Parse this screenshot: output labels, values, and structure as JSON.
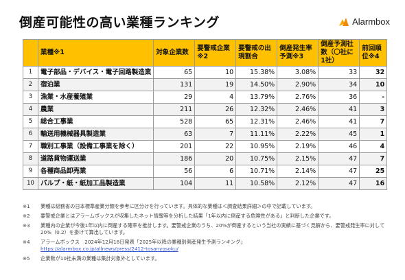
{
  "title": "倒産可能性の高い業種ランキング",
  "brand": {
    "name": "Alarmbox"
  },
  "headers": [
    "",
    "業種※1",
    "対象企業数",
    "要警戒企業※2",
    "要警戒の出現割合",
    "倒産発生率予測※3",
    "倒産予測社数（〇社に1社）",
    "前回順位※4"
  ],
  "rows": [
    {
      "rank": "1",
      "industry": "電子部品・デバイス・電子回路製造業",
      "companies": "65",
      "alert": "10",
      "ratio": "15.38%",
      "rate": "3.08%",
      "one_in": "33",
      "prev": "32"
    },
    {
      "rank": "2",
      "industry": "宿泊業",
      "companies": "131",
      "alert": "19",
      "ratio": "14.50%",
      "rate": "2.90%",
      "one_in": "34",
      "prev": "10"
    },
    {
      "rank": "3",
      "industry": "漁業・水産養殖業",
      "companies": "29",
      "alert": "4",
      "ratio": "13.79%",
      "rate": "2.76%",
      "one_in": "36",
      "prev": "-"
    },
    {
      "rank": "4",
      "industry": "農業",
      "companies": "211",
      "alert": "26",
      "ratio": "12.32%",
      "rate": "2.46%",
      "one_in": "41",
      "prev": "3"
    },
    {
      "rank": "5",
      "industry": "総合工事業",
      "companies": "528",
      "alert": "65",
      "ratio": "12.31%",
      "rate": "2.46%",
      "one_in": "41",
      "prev": "7"
    },
    {
      "rank": "6",
      "industry": "輸送用機械器具製造業",
      "companies": "63",
      "alert": "7",
      "ratio": "11.11%",
      "rate": "2.22%",
      "one_in": "45",
      "prev": "1"
    },
    {
      "rank": "7",
      "industry": "職別工事業（設備工事業を除く）",
      "companies": "201",
      "alert": "22",
      "ratio": "10.95%",
      "rate": "2.19%",
      "one_in": "46",
      "prev": "4"
    },
    {
      "rank": "8",
      "industry": "道路貨物運送業",
      "companies": "186",
      "alert": "20",
      "ratio": "10.75%",
      "rate": "2.15%",
      "one_in": "47",
      "prev": "7"
    },
    {
      "rank": "9",
      "industry": "各種商品卸売業",
      "companies": "56",
      "alert": "6",
      "ratio": "10.71%",
      "rate": "2.14%",
      "one_in": "47",
      "prev": "25"
    },
    {
      "rank": "10",
      "industry": "パルプ・紙・紙加工品製造業",
      "companies": "104",
      "alert": "11",
      "ratio": "10.58%",
      "rate": "2.12%",
      "one_in": "47",
      "prev": "16"
    }
  ],
  "notes": [
    {
      "mark": "※1",
      "text": "業種は総務省の日本標準産業分類を参考に区分けを行っています。具体的な業種は＜調査結果詳細＞の中で記載しています。"
    },
    {
      "mark": "※2",
      "text": "要警戒企業とはアラームボックスが収集したネット情報等を分析した結果「1年以内に倒産する危険性がある」と判断した企業です。"
    },
    {
      "mark": "※3",
      "text": "業種内の企業が今後1年以内に倒産する確率を推計します。要警戒企業のうち、20%が倒産するという当社の実績に基づく見解から、要警戒発生率に対して20%（0.2）を掛けて算出しています。"
    },
    {
      "mark": "※4",
      "text": "アラームボックス　2024年12月18日発表「2025年以降の業種別倒産発生予測ランキング」",
      "link": "https://alarmbox.co.jp/allnews/press/2412-tosanyosoku/"
    },
    {
      "mark": "※5",
      "text": "企業数が10社未満の業種は集計対象外としています。"
    }
  ]
}
